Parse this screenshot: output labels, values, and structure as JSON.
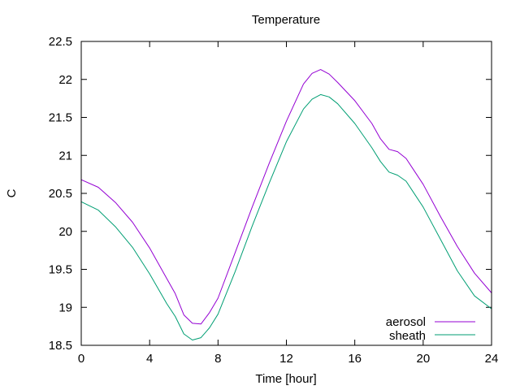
{
  "chart_data": {
    "type": "line",
    "title": "Temperature",
    "xlabel": "Time [hour]",
    "ylabel": "C",
    "xlim": [
      0,
      24
    ],
    "ylim": [
      18.5,
      22.5
    ],
    "xticks": [
      0,
      4,
      8,
      12,
      16,
      20,
      24
    ],
    "yticks": [
      18.5,
      19,
      19.5,
      20,
      20.5,
      21,
      21.5,
      22,
      22.5
    ],
    "xtick_labels": [
      "0",
      "4",
      "8",
      "12",
      "16",
      "20",
      "24"
    ],
    "ytick_labels": [
      "18.5",
      "19",
      "19.5",
      "20",
      "20.5",
      "21",
      "21.5",
      "22",
      "22.5"
    ],
    "grid": false,
    "legend_position": "bottom-right",
    "series": [
      {
        "name": "aerosol",
        "color": "#9400d3",
        "x": [
          0,
          1,
          2,
          3,
          4,
          5,
          5.5,
          6,
          6.5,
          7,
          7.5,
          8,
          9,
          10,
          11,
          12,
          13,
          13.5,
          14,
          14.5,
          15,
          16,
          17,
          17.5,
          18,
          18.5,
          19,
          20,
          21,
          22,
          23,
          24
        ],
        "y": [
          20.68,
          20.58,
          20.38,
          20.12,
          19.78,
          19.38,
          19.18,
          18.9,
          18.79,
          18.78,
          18.93,
          19.12,
          19.72,
          20.32,
          20.9,
          21.45,
          21.94,
          22.08,
          22.13,
          22.07,
          21.96,
          21.72,
          21.42,
          21.22,
          21.08,
          21.05,
          20.96,
          20.62,
          20.2,
          19.8,
          19.45,
          19.19
        ]
      },
      {
        "name": "sheath",
        "color": "#009e73",
        "x": [
          0,
          1,
          2,
          3,
          4,
          5,
          5.5,
          6,
          6.5,
          7,
          7.5,
          8,
          9,
          10,
          11,
          12,
          13,
          13.5,
          14,
          14.5,
          15,
          16,
          17,
          17.5,
          18,
          18.5,
          19,
          20,
          21,
          22,
          23,
          24
        ],
        "y": [
          20.39,
          20.28,
          20.06,
          19.79,
          19.44,
          19.05,
          18.88,
          18.65,
          18.57,
          18.6,
          18.73,
          18.91,
          19.47,
          20.07,
          20.64,
          21.18,
          21.61,
          21.74,
          21.8,
          21.77,
          21.68,
          21.42,
          21.1,
          20.92,
          20.78,
          20.74,
          20.66,
          20.32,
          19.9,
          19.48,
          19.15,
          18.98
        ]
      }
    ]
  }
}
